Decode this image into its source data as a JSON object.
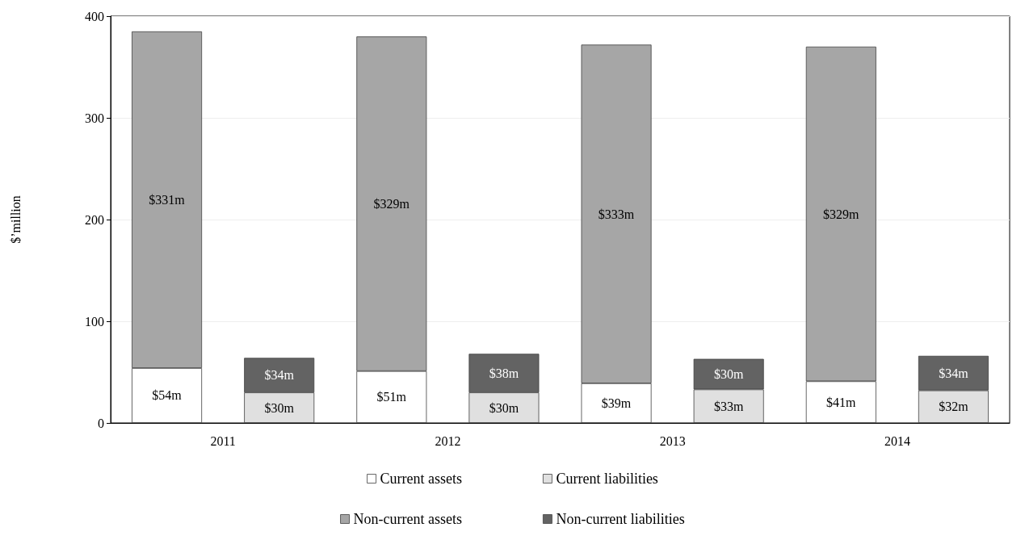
{
  "chart_data": {
    "type": "bar",
    "stacked": true,
    "ylabel": "$’million",
    "categories": [
      "2011",
      null,
      "2012",
      null,
      "2013",
      null,
      "2014",
      null
    ],
    "ylim": [
      0,
      400
    ],
    "yticks": [
      0,
      100,
      200,
      300,
      400
    ],
    "grid": "y",
    "legend": "bottom",
    "series": [
      {
        "name": "Current assets",
        "color": "#ffffff",
        "values": [
          54,
          null,
          51,
          null,
          39,
          null,
          41,
          null
        ],
        "value_labels": [
          "$54m",
          null,
          "$51m",
          null,
          "$39m",
          null,
          "$41m",
          null
        ]
      },
      {
        "name": "Current liabilities",
        "color": "#e0e0e0",
        "values": [
          null,
          30,
          null,
          30,
          null,
          33,
          null,
          32
        ],
        "value_labels": [
          null,
          "$30m",
          null,
          "$30m",
          null,
          "$33m",
          null,
          "$32m"
        ]
      },
      {
        "name": "Non-current assets",
        "color": "#a6a6a6",
        "values": [
          331,
          null,
          329,
          null,
          333,
          null,
          329,
          null
        ],
        "value_labels": [
          "$331m",
          null,
          "$329m",
          null,
          "$333m",
          null,
          "$329m",
          null
        ]
      },
      {
        "name": "Non-current liabilities",
        "color": "#636363",
        "values": [
          null,
          34,
          null,
          38,
          null,
          30,
          null,
          34
        ],
        "value_labels": [
          null,
          "$34m",
          null,
          "$38m",
          null,
          "$30m",
          null,
          "$34m"
        ]
      }
    ]
  }
}
